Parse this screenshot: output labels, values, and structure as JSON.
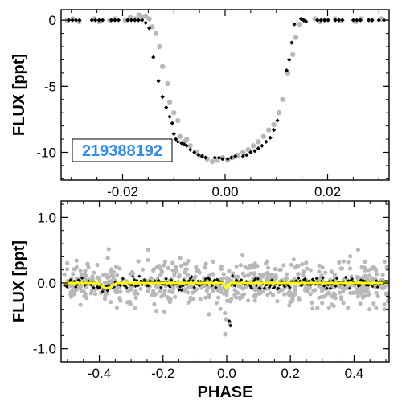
{
  "colors": {
    "raw_points": "#b8b8b8",
    "binned_points": "#000000",
    "model_line": "#ffff00",
    "id_label": "#2f8cf0",
    "axis": "#000000"
  },
  "chart_data": [
    {
      "type": "scatter",
      "title": "",
      "xlabel": "",
      "ylabel": "FLUX [ppt]",
      "xlim": [
        -0.032,
        0.032
      ],
      "ylim": [
        -12.1,
        0.8
      ],
      "xticks": [
        -0.02,
        0.0,
        0.02
      ],
      "xtick_labels": [
        "-0.02",
        "0.00",
        "0.02"
      ],
      "yticks": [
        0,
        -5,
        -10
      ],
      "ytick_labels": [
        "0",
        "-5",
        "-10"
      ],
      "grid": false,
      "annotation": "219388192",
      "series": [
        {
          "style": "raw",
          "x": [
            -0.0308,
            -0.0297,
            -0.0285,
            -0.0255,
            -0.0245,
            -0.0225,
            -0.0215,
            -0.0195,
            -0.0185,
            -0.0175,
            -0.0168,
            -0.0162,
            -0.0155,
            -0.0148,
            -0.0142,
            -0.0135,
            -0.0128,
            -0.0122,
            -0.0112,
            -0.0108,
            -0.01,
            -0.0092,
            -0.0088,
            -0.008,
            -0.0075,
            -0.0068,
            -0.0055,
            -0.0045,
            -0.0035,
            -0.0025,
            -0.0015,
            -0.0005,
            0.0005,
            0.0015,
            0.0025,
            0.0035,
            0.0045,
            0.0055,
            0.0065,
            0.0075,
            0.0085,
            0.0095,
            0.0105,
            0.0112,
            0.0122,
            0.0132,
            0.0138,
            0.0145,
            0.0155,
            0.0175,
            0.0185,
            0.0195,
            0.0215,
            0.0225,
            0.0255,
            0.0265,
            0.0285,
            0.0305
          ],
          "y": [
            0.0,
            0.1,
            -0.1,
            0.1,
            -0.1,
            0.0,
            0.1,
            0.0,
            0.2,
            0.1,
            0.4,
            0.2,
            0.3,
            0.1,
            -0.5,
            -1.0,
            -2.0,
            -3.5,
            -4.8,
            -6.2,
            -7.0,
            -7.6,
            -8.8,
            -9.2,
            -9.0,
            -9.5,
            -10.0,
            -10.3,
            -10.5,
            -10.7,
            -10.6,
            -10.4,
            -10.6,
            -10.4,
            -10.2,
            -10.0,
            -9.8,
            -9.5,
            -9.2,
            -8.8,
            -8.3,
            -7.9,
            -7.0,
            -6.0,
            -4.0,
            -2.6,
            -1.3,
            -0.3,
            0.0,
            0.1,
            -0.1,
            0.0,
            0.1,
            0.0,
            -0.1,
            0.1,
            0.0,
            0.1
          ]
        },
        {
          "style": "binned",
          "x": [
            -0.0305,
            -0.0298,
            -0.0291,
            -0.0284,
            -0.026,
            -0.0253,
            -0.0246,
            -0.0239,
            -0.0222,
            -0.0215,
            -0.0208,
            -0.019,
            -0.0183,
            -0.0176,
            -0.0169,
            -0.0162,
            -0.0155,
            -0.0148,
            -0.014,
            -0.013,
            -0.0122,
            -0.0115,
            -0.0108,
            -0.0103,
            -0.01,
            -0.0096,
            -0.0092,
            -0.0085,
            -0.008,
            -0.0075,
            -0.0068,
            -0.006,
            -0.0052,
            -0.0045,
            -0.0038,
            -0.002,
            -0.0012,
            -0.0005,
            0.0005,
            0.0012,
            0.002,
            0.0035,
            0.0042,
            0.005,
            0.0058,
            0.0065,
            0.0072,
            0.008,
            0.0088,
            0.0095,
            0.0102,
            0.012,
            0.0125,
            0.013,
            0.0135,
            0.0148,
            0.0153,
            0.0158,
            0.018,
            0.0187,
            0.0194,
            0.0201,
            0.0215,
            0.0222,
            0.0229,
            0.025,
            0.0257,
            0.0264,
            0.028,
            0.0287,
            0.03,
            0.031
          ],
          "y": [
            0,
            0,
            0,
            0,
            0,
            0,
            0,
            0,
            0,
            0,
            0,
            0,
            0,
            0,
            0,
            0,
            -0.2,
            -0.6,
            -2.8,
            -4.6,
            -5.8,
            -6.6,
            -7.3,
            -7.8,
            -8.6,
            -9.0,
            -9.2,
            -9.3,
            -9.4,
            -9.5,
            -9.8,
            -10.0,
            -10.2,
            -10.3,
            -10.4,
            -10.4,
            -10.4,
            -10.5,
            -10.5,
            -10.4,
            -10.3,
            -10.3,
            -10.2,
            -10.0,
            -9.9,
            -9.7,
            -9.5,
            -9.2,
            -8.9,
            -8.3,
            -7.6,
            -3.8,
            -3.0,
            -1.7,
            -0.3,
            0.1,
            0.0,
            -0.1,
            0,
            0,
            0,
            0,
            0,
            0,
            0,
            0,
            0,
            0,
            0,
            0,
            0,
            0
          ]
        }
      ]
    },
    {
      "type": "scatter",
      "title": "",
      "xlabel": "PHASE",
      "ylabel": "FLUX [ppt]",
      "xlim": [
        -0.52,
        0.51
      ],
      "ylim": [
        -1.2,
        1.25
      ],
      "xticks": [
        -0.4,
        -0.2,
        0.0,
        0.2,
        0.4
      ],
      "xtick_labels": [
        "-0.4",
        "-0.2",
        "0.0",
        "0.2",
        "0.4"
      ],
      "yticks": [
        1.0,
        0.0,
        -1.0
      ],
      "ytick_labels": [
        "1.0",
        "0.0",
        "-1.0"
      ],
      "grid": false,
      "raw_scatter": {
        "points": 700,
        "sigma": 0.17,
        "outliers": [
          [
            -0.005,
            -0.78
          ],
          [
            -0.002,
            -0.55
          ],
          [
            0.01,
            -0.62
          ]
        ]
      },
      "binned_scatter": {
        "bin_width": 0.004,
        "sigma": 0.045,
        "eclipse_gap": [
          -0.012,
          0.012
        ],
        "eclipse_points": [
          [
            0.008,
            -0.58
          ],
          [
            0.012,
            -0.65
          ]
        ]
      },
      "model_line": {
        "x": [
          -0.51,
          -0.405,
          -0.395,
          -0.385,
          -0.375,
          -0.365,
          -0.355,
          -0.345,
          -0.012,
          -0.006,
          0.0,
          0.006,
          0.012,
          0.51
        ],
        "y": [
          0.0,
          0.0,
          -0.03,
          -0.07,
          -0.08,
          -0.07,
          -0.03,
          0.0,
          0.0,
          -0.05,
          -0.08,
          -0.05,
          0.0,
          0.0
        ]
      }
    }
  ]
}
